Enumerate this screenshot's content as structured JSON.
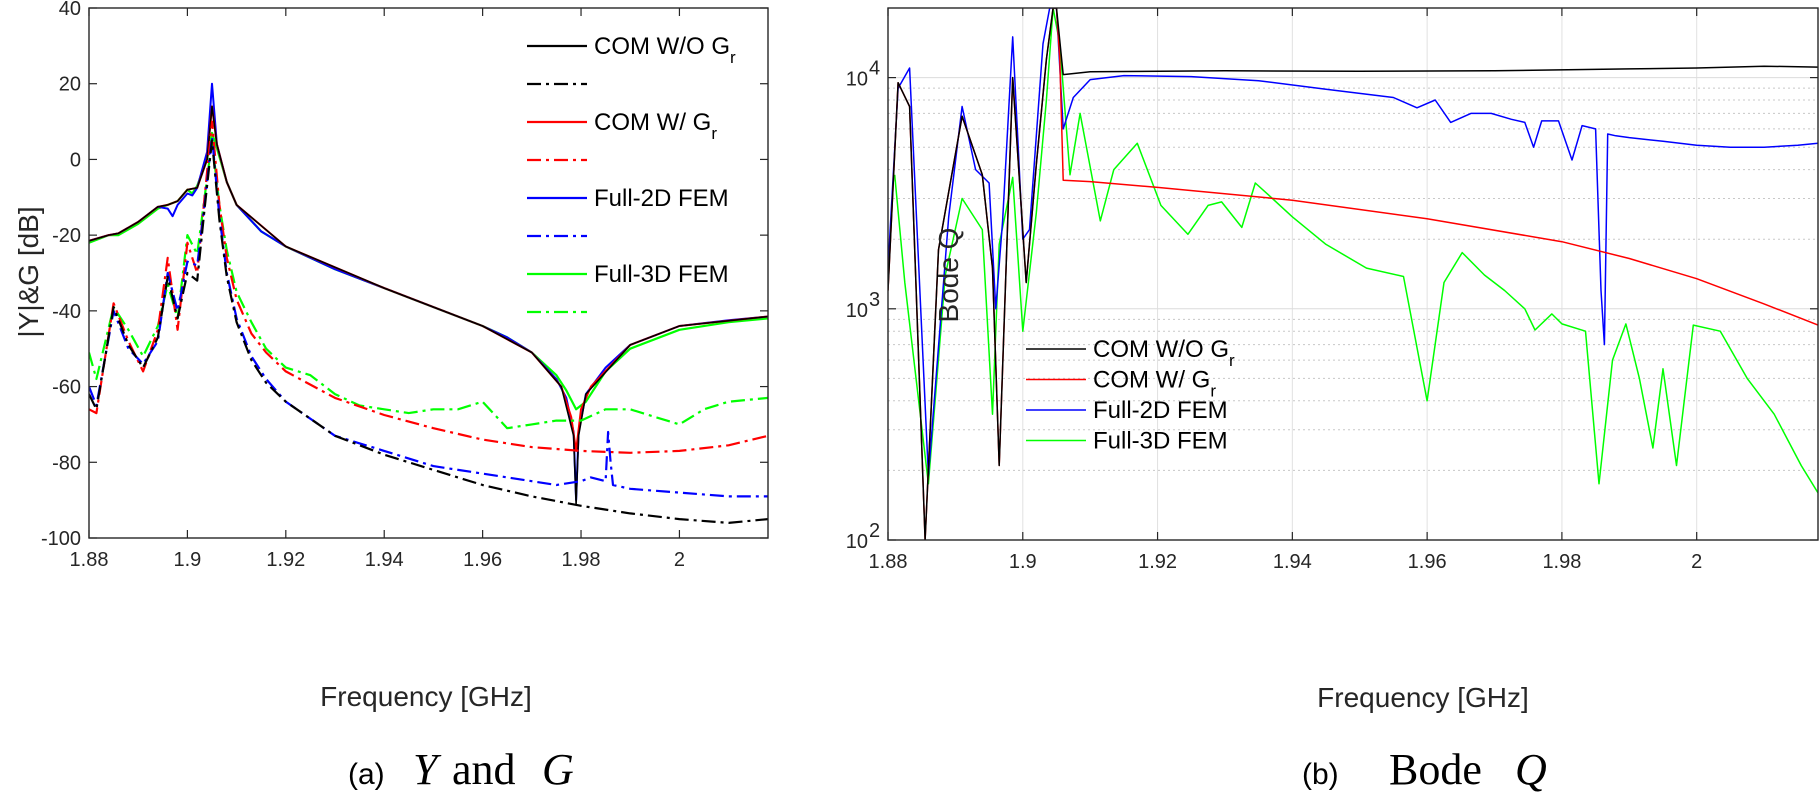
{
  "chart_data": [
    {
      "panel": "a",
      "type": "line",
      "caption": {
        "tag": "(a)",
        "var1": "Y",
        "conj": "and",
        "var2": "G"
      },
      "xlabel": "Frequency [GHz]",
      "ylabel": "|Y|&G [dB]",
      "xlim": [
        1.88,
        2.018
      ],
      "ylim": [
        -100,
        40
      ],
      "xticks": [
        1.88,
        1.9,
        1.92,
        1.94,
        1.96,
        1.98,
        2
      ],
      "xtick_labels": [
        "1.88",
        "1.9",
        "1.92",
        "1.94",
        "1.96",
        "1.98",
        "2"
      ],
      "yticks": [
        40,
        20,
        0,
        -20,
        -40,
        -60,
        -80,
        -100
      ],
      "ytick_labels": [
        "40",
        "20",
        "0",
        "-20",
        "-40",
        "-60",
        "-80",
        "-100"
      ],
      "grid": false,
      "legend_position": "top-right",
      "legend": [
        {
          "text": "COM W/O G",
          "sub": "r",
          "style": "solid",
          "color": "#000000"
        },
        {
          "text": "",
          "sub": "",
          "style": "dashdot",
          "color": "#000000"
        },
        {
          "text": "COM W/ G",
          "sub": "r",
          "style": "solid",
          "color": "#ff0000"
        },
        {
          "text": "",
          "sub": "",
          "style": "dashdot",
          "color": "#ff0000"
        },
        {
          "text": "Full-2D FEM",
          "sub": "",
          "style": "solid",
          "color": "#0000ff"
        },
        {
          "text": "",
          "sub": "",
          "style": "dashdot",
          "color": "#0000ff"
        },
        {
          "text": "Full-3D FEM",
          "sub": "",
          "style": "solid",
          "color": "#00ff00"
        },
        {
          "text": "",
          "sub": "",
          "style": "dashdot",
          "color": "#00ff00"
        }
      ],
      "series": [
        {
          "color": "#00ff00",
          "style": "solid",
          "width": 2.2,
          "x": [
            1.88,
            1.884,
            1.886,
            1.89,
            1.894,
            1.896,
            1.898,
            1.9,
            1.901,
            1.902,
            1.904,
            1.905,
            1.906,
            1.908,
            1.91,
            1.915,
            1.92,
            1.93,
            1.94,
            1.95,
            1.96,
            1.965,
            1.97,
            1.975,
            1.977,
            1.979,
            1.981,
            1.985,
            1.99,
            2.0,
            2.01,
            2.018
          ],
          "y": [
            -22,
            -20,
            -20,
            -17,
            -13,
            -12,
            -11,
            -8,
            -9,
            -7,
            0,
            7,
            3,
            -6,
            -12,
            -19,
            -23,
            -29,
            -34,
            -39,
            -44,
            -47,
            -51,
            -57,
            -61,
            -66,
            -64,
            -56,
            -50,
            -45,
            -43,
            -42
          ]
        },
        {
          "color": "#0000ff",
          "style": "solid",
          "width": 2.0,
          "x": [
            1.88,
            1.884,
            1.886,
            1.89,
            1.894,
            1.896,
            1.897,
            1.898,
            1.9,
            1.901,
            1.902,
            1.904,
            1.905,
            1.906,
            1.908,
            1.91,
            1.915,
            1.92,
            1.93,
            1.94,
            1.95,
            1.96,
            1.965,
            1.97,
            1.975,
            1.977,
            1.9785,
            1.979,
            1.9795,
            1.981,
            1.985,
            1.99,
            2.0,
            2.01,
            2.018
          ],
          "y": [
            -21.5,
            -20,
            -19.5,
            -16.5,
            -12.5,
            -13,
            -15,
            -12,
            -9,
            -9.5,
            -7.5,
            2,
            20,
            4,
            -6,
            -12,
            -19,
            -23,
            -29,
            -34,
            -39,
            -44,
            -47,
            -51,
            -58,
            -63,
            -72,
            -90,
            -72,
            -62,
            -55,
            -49,
            -44,
            -42.5,
            -41.5
          ]
        },
        {
          "color": "#ff0000",
          "style": "solid",
          "width": 2.0,
          "x": [
            1.88,
            1.884,
            1.886,
            1.89,
            1.894,
            1.896,
            1.898,
            1.9,
            1.902,
            1.904,
            1.905,
            1.906,
            1.908,
            1.91,
            1.92,
            1.94,
            1.96,
            1.97,
            1.976,
            1.978,
            1.979,
            1.98,
            1.982,
            1.99,
            2.0,
            2.018
          ],
          "y": [
            -21.5,
            -20,
            -19.5,
            -16.5,
            -12.5,
            -12,
            -11,
            -8,
            -7.5,
            0,
            14,
            4,
            -6,
            -12,
            -23,
            -34,
            -44,
            -51,
            -60,
            -68,
            -77,
            -66,
            -60,
            -49,
            -44,
            -41.5
          ]
        },
        {
          "color": "#000000",
          "style": "solid",
          "width": 1.6,
          "x": [
            1.88,
            1.884,
            1.886,
            1.89,
            1.894,
            1.896,
            1.898,
            1.9,
            1.902,
            1.904,
            1.905,
            1.906,
            1.908,
            1.91,
            1.92,
            1.94,
            1.96,
            1.97,
            1.976,
            1.9785,
            1.979,
            1.9795,
            1.981,
            1.99,
            2.0,
            2.018
          ],
          "y": [
            -21.5,
            -20,
            -19.5,
            -16.5,
            -12.5,
            -12,
            -11,
            -8,
            -7.5,
            0,
            14,
            4,
            -6,
            -12,
            -23,
            -34,
            -44,
            -51,
            -60,
            -73,
            -91,
            -73,
            -62,
            -49,
            -44,
            -41.5
          ]
        },
        {
          "color": "#00ff00",
          "style": "dashdot",
          "width": 2.2,
          "x": [
            1.88,
            1.8815,
            1.885,
            1.888,
            1.891,
            1.894,
            1.896,
            1.898,
            1.9,
            1.902,
            1.9035,
            1.905,
            1.9065,
            1.908,
            1.91,
            1.913,
            1.916,
            1.92,
            1.925,
            1.93,
            1.935,
            1.94,
            1.945,
            1.95,
            1.955,
            1.96,
            1.965,
            1.97,
            1.975,
            1.98,
            1.985,
            1.99,
            1.995,
            2.0,
            2.005,
            2.01,
            2.018
          ],
          "y": [
            -51,
            -58,
            -39,
            -45,
            -52,
            -44,
            -33,
            -42,
            -20,
            -25,
            -10,
            5,
            -12,
            -24,
            -35,
            -43,
            -50,
            -55,
            -57,
            -62,
            -65,
            -66,
            -67,
            -66,
            -66,
            -64,
            -71,
            -70,
            -69,
            -69,
            -66,
            -66,
            -68,
            -70,
            -66,
            -64,
            -63
          ]
        },
        {
          "color": "#ff0000",
          "style": "dashdot",
          "width": 2.2,
          "x": [
            1.88,
            1.8815,
            1.885,
            1.888,
            1.891,
            1.894,
            1.896,
            1.898,
            1.9,
            1.902,
            1.9035,
            1.905,
            1.9065,
            1.908,
            1.91,
            1.913,
            1.916,
            1.92,
            1.93,
            1.94,
            1.95,
            1.96,
            1.97,
            1.98,
            1.99,
            2.0,
            2.01,
            2.018
          ],
          "y": [
            -66,
            -67,
            -38,
            -48,
            -56,
            -45,
            -26,
            -45,
            -22,
            -30,
            -10,
            10,
            -12,
            -26,
            -37,
            -46,
            -51,
            -56,
            -63,
            -67.5,
            -71,
            -74,
            -76,
            -77,
            -77.5,
            -77,
            -75.5,
            -73
          ]
        },
        {
          "color": "#0000ff",
          "style": "dashdot",
          "width": 2.2,
          "x": [
            1.88,
            1.8815,
            1.885,
            1.888,
            1.891,
            1.894,
            1.896,
            1.898,
            1.9,
            1.902,
            1.9035,
            1.905,
            1.9065,
            1.908,
            1.91,
            1.913,
            1.916,
            1.92,
            1.93,
            1.94,
            1.95,
            1.96,
            1.965,
            1.97,
            1.975,
            1.98,
            1.982,
            1.985,
            1.9855,
            1.986,
            1.9865,
            1.99,
            2.0,
            2.01,
            2.018
          ],
          "y": [
            -60,
            -65,
            -40,
            -50,
            -54,
            -48,
            -30,
            -40,
            -27,
            -28,
            -12,
            6,
            -15,
            -30,
            -42,
            -52,
            -58,
            -64,
            -73,
            -77,
            -81,
            -83,
            -84,
            -85,
            -86,
            -85,
            -84,
            -85,
            -72,
            -80,
            -86,
            -87,
            -88,
            -89,
            -89
          ]
        },
        {
          "color": "#000000",
          "style": "dashdot",
          "width": 2.2,
          "x": [
            1.88,
            1.8815,
            1.885,
            1.888,
            1.891,
            1.894,
            1.896,
            1.898,
            1.9,
            1.902,
            1.9035,
            1.905,
            1.9065,
            1.908,
            1.91,
            1.913,
            1.916,
            1.92,
            1.93,
            1.94,
            1.95,
            1.96,
            1.97,
            1.98,
            1.99,
            2.0,
            2.01,
            2.018
          ],
          "y": [
            -62,
            -66,
            -39,
            -49,
            -55,
            -47,
            -31,
            -42,
            -30,
            -32,
            -13,
            5,
            -16,
            -31,
            -43,
            -53,
            -59,
            -64,
            -73,
            -78,
            -82,
            -86,
            -89,
            -91.5,
            -93.5,
            -95,
            -96,
            -95
          ]
        }
      ]
    },
    {
      "panel": "b",
      "type": "line",
      "caption": {
        "tag": "(b)",
        "var1": "Bode",
        "conj": "",
        "var2": "Q"
      },
      "xlabel": "Frequency [GHz]",
      "ylabel": "Bode Q",
      "yscale": "log",
      "xlim": [
        1.88,
        2.018
      ],
      "ylim": [
        100,
        20000
      ],
      "xticks": [
        1.88,
        1.9,
        1.92,
        1.94,
        1.96,
        1.98,
        2
      ],
      "xtick_labels": [
        "1.88",
        "1.9",
        "1.92",
        "1.94",
        "1.96",
        "1.98",
        "2"
      ],
      "yticks": [
        100,
        1000,
        10000
      ],
      "ytick_labels": [
        "10",
        "10",
        "10"
      ],
      "ytick_exponents": [
        "2",
        "3",
        "4"
      ],
      "grid": true,
      "legend_position": "bottom-left",
      "legend": [
        {
          "text": "COM W/O G",
          "sub": "r",
          "color": "#000000"
        },
        {
          "text": "COM W/ G",
          "sub": "r",
          "color": "#ff0000"
        },
        {
          "text": "Full-2D FEM",
          "sub": "",
          "color": "#0000ff"
        },
        {
          "text": "Full-3D FEM",
          "sub": "",
          "color": "#00ff00"
        }
      ],
      "series": [
        {
          "color": "#00ff00",
          "width": 1.5,
          "x": [
            1.881,
            1.8825,
            1.886,
            1.8885,
            1.891,
            1.894,
            1.8955,
            1.8965,
            1.8985,
            1.9,
            1.902,
            1.9035,
            1.9045,
            1.9055,
            1.907,
            1.9085,
            1.9115,
            1.9135,
            1.917,
            1.9205,
            1.9245,
            1.9275,
            1.9295,
            1.9325,
            1.9345,
            1.9365,
            1.94,
            1.945,
            1.951,
            1.9565,
            1.96,
            1.9625,
            1.9652,
            1.9685,
            1.9715,
            1.9745,
            1.976,
            1.9785,
            1.98,
            1.9835,
            1.9855,
            1.9875,
            1.9895,
            1.9915,
            1.9935,
            1.995,
            1.997,
            1.9995,
            2.0035,
            2.0075,
            2.0115,
            2.0155,
            2.018
          ],
          "y": [
            3800,
            1300,
            175,
            1400,
            3000,
            2200,
            350,
            1900,
            3700,
            800,
            2600,
            8000,
            20000,
            14000,
            3800,
            7000,
            2400,
            4000,
            5200,
            2800,
            2100,
            2800,
            2900,
            2250,
            3500,
            3100,
            2500,
            1900,
            1500,
            1380,
            400,
            1300,
            1750,
            1400,
            1200,
            1000,
            810,
            950,
            860,
            800,
            175,
            600,
            860,
            500,
            250,
            550,
            210,
            850,
            800,
            500,
            350,
            210,
            160
          ]
        },
        {
          "color": "#0000ff",
          "width": 1.5,
          "x": [
            1.88,
            1.8815,
            1.8832,
            1.886,
            1.889,
            1.891,
            1.893,
            1.895,
            1.896,
            1.897,
            1.8985,
            1.9,
            1.901,
            1.903,
            1.904,
            1.905,
            1.906,
            1.9075,
            1.91,
            1.915,
            1.925,
            1.935,
            1.945,
            1.955,
            1.9585,
            1.9612,
            1.9635,
            1.9665,
            1.9695,
            1.9725,
            1.9745,
            1.9758,
            1.977,
            1.9795,
            1.9815,
            1.983,
            1.985,
            1.9858,
            1.9863,
            1.9868,
            1.988,
            1.99,
            1.995,
            2.0,
            2.005,
            2.01,
            2.015,
            2.018
          ],
          "y": [
            1500,
            9000,
            11000,
            190,
            2500,
            7500,
            4000,
            3500,
            1000,
            2400,
            15000,
            2000,
            2200,
            14000,
            20000,
            20000,
            6000,
            8200,
            9800,
            10200,
            10100,
            9700,
            8900,
            8200,
            7400,
            8000,
            6400,
            7000,
            7000,
            6600,
            6400,
            5000,
            6500,
            6500,
            4400,
            6200,
            6000,
            1200,
            700,
            5700,
            5600,
            5500,
            5300,
            5100,
            5000,
            5000,
            5100,
            5200
          ]
        },
        {
          "color": "#ff0000",
          "width": 1.5,
          "x": [
            1.88,
            1.8815,
            1.8832,
            1.8855,
            1.8875,
            1.891,
            1.894,
            1.8955,
            1.8965,
            1.8985,
            1.9005,
            1.902,
            1.9035,
            1.9045,
            1.905,
            1.9055,
            1.906,
            1.91,
            1.92,
            1.94,
            1.96,
            1.98,
            1.99,
            2.0,
            2.01,
            2.018
          ],
          "y": [
            1200,
            9500,
            7500,
            100,
            1800,
            6800,
            3800,
            1500,
            210,
            10000,
            1300,
            4200,
            12000,
            20000,
            20000,
            12000,
            3600,
            3550,
            3350,
            2950,
            2450,
            1950,
            1650,
            1350,
            1050,
            850
          ]
        },
        {
          "color": "#000000",
          "width": 1.5,
          "x": [
            1.88,
            1.8815,
            1.8832,
            1.8855,
            1.8875,
            1.891,
            1.894,
            1.8955,
            1.8965,
            1.8985,
            1.9005,
            1.902,
            1.9035,
            1.9045,
            1.905,
            1.906,
            1.91,
            1.93,
            1.95,
            1.97,
            1.99,
            2.0,
            2.01,
            2.018
          ],
          "y": [
            1200,
            9500,
            7500,
            100,
            1800,
            6800,
            3800,
            1500,
            210,
            10000,
            1300,
            4200,
            12000,
            20000,
            20000,
            10300,
            10600,
            10700,
            10650,
            10700,
            10900,
            11000,
            11200,
            11100
          ]
        }
      ]
    }
  ]
}
